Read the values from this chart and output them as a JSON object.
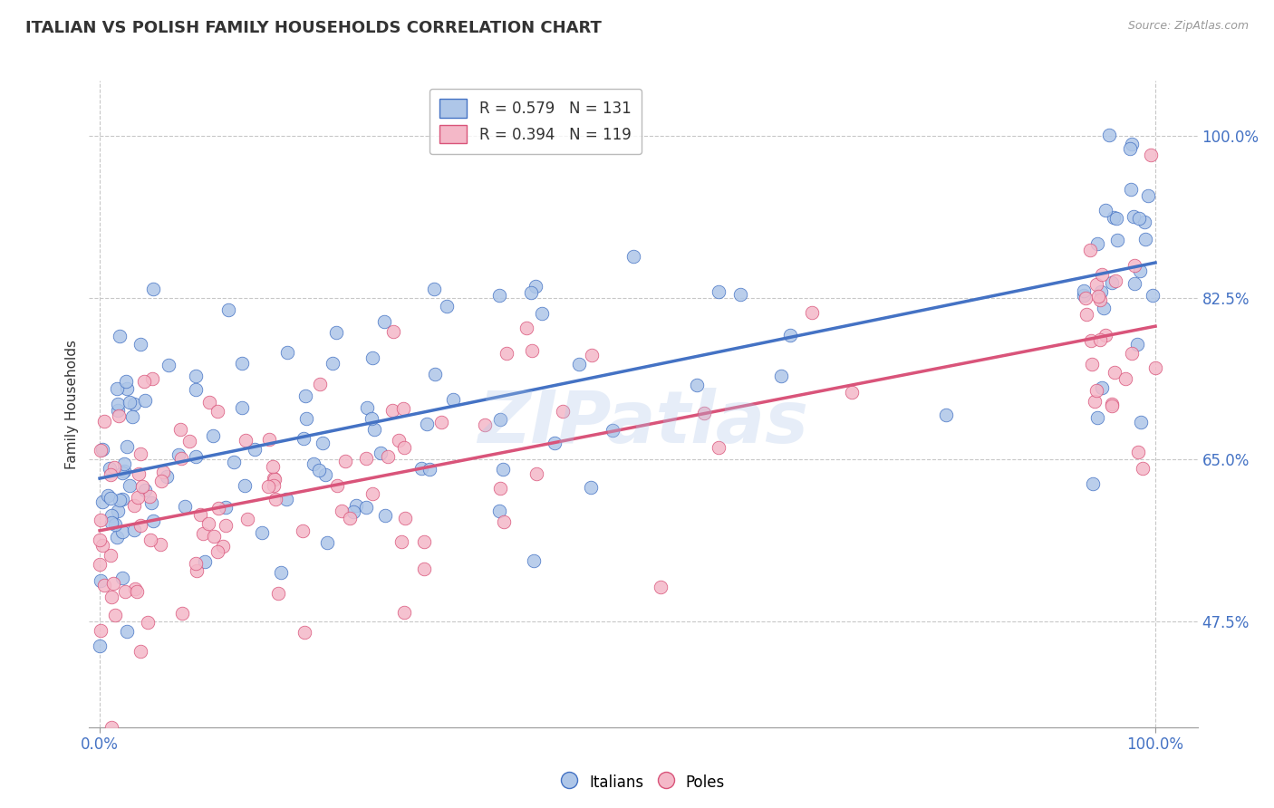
{
  "title": "ITALIAN VS POLISH FAMILY HOUSEHOLDS CORRELATION CHART",
  "source_text": "Source: ZipAtlas.com",
  "ylabel": "Family Households",
  "legend_italian": "Italians",
  "legend_polish": "Poles",
  "italian_R": "0.579",
  "italian_N": "131",
  "polish_R": "0.394",
  "polish_N": "119",
  "italian_color": "#aec6e8",
  "polish_color": "#f4b8c8",
  "italian_line_color": "#4472c4",
  "polish_line_color": "#d9547a",
  "watermark": "ZIPatlas",
  "yticks": [
    0.475,
    0.65,
    0.825,
    1.0
  ],
  "ytick_labels": [
    "47.5%",
    "65.0%",
    "82.5%",
    "100.0%"
  ],
  "xtick_labels": [
    "0.0%",
    "100.0%"
  ],
  "italian_intercept": 0.625,
  "italian_slope": 0.255,
  "polish_intercept": 0.565,
  "polish_slope": 0.235
}
